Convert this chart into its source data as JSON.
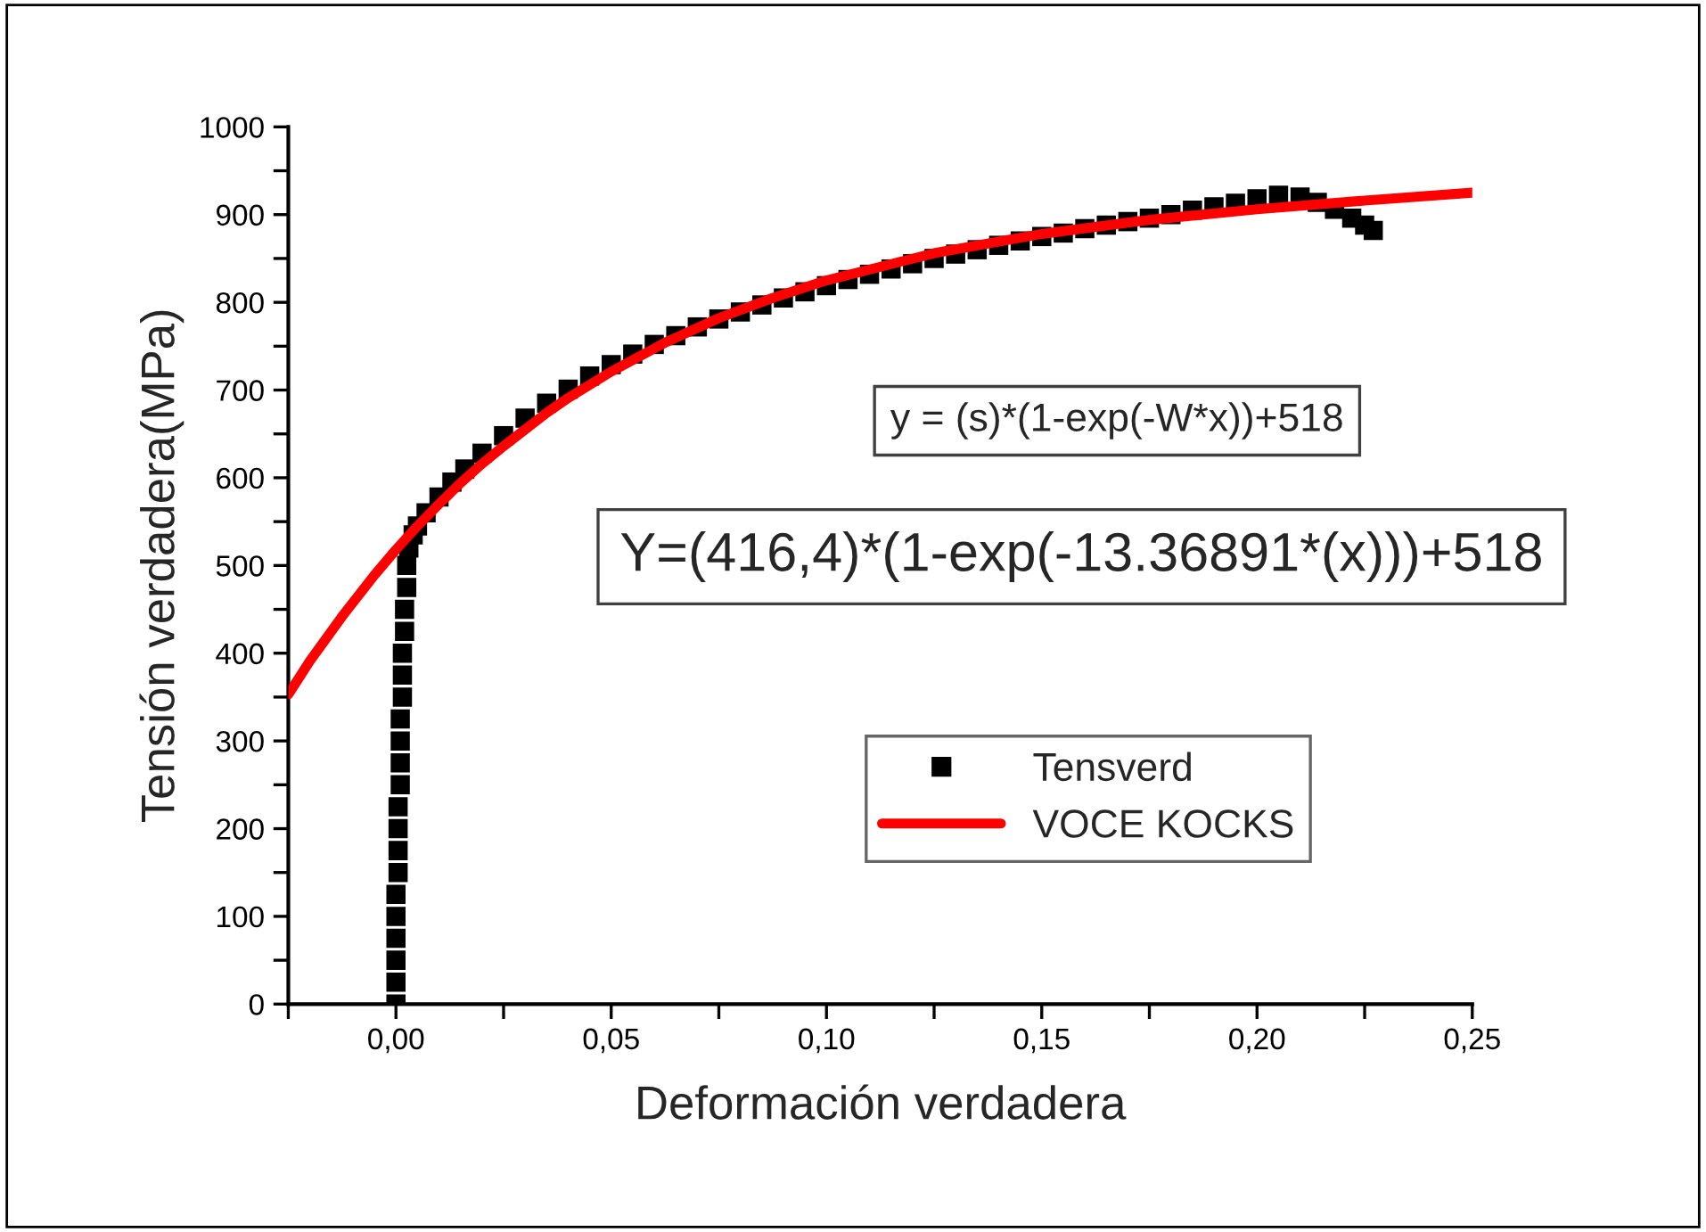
{
  "chart_data": {
    "type": "scatter",
    "xlabel": "Deformación verdadera",
    "ylabel": "Tensión verdadera(MPa)",
    "annotations": [
      "y = (s)*(1-exp(-W*x))+518",
      "Y=(416,4)*(1-exp(-13.36891*(x)))+518"
    ],
    "series": [
      {
        "name": "Tensverd",
        "marker": "square",
        "color": "#000000",
        "x": [
          0,
          0,
          0,
          0,
          0,
          0,
          0.0005,
          0.0005,
          0.0005,
          0.0005,
          0.001,
          0.001,
          0.001,
          0.001,
          0.0015,
          0.0015,
          0.0015,
          0.002,
          0.002,
          0.0025,
          0.0025,
          0.003,
          0.004,
          0.005,
          0.007,
          0.01,
          0.013,
          0.016,
          0.02,
          0.025,
          0.03,
          0.035,
          0.04,
          0.045,
          0.05,
          0.055,
          0.06,
          0.065,
          0.07,
          0.075,
          0.08,
          0.085,
          0.09,
          0.095,
          0.1,
          0.105,
          0.11,
          0.115,
          0.12,
          0.125,
          0.13,
          0.135,
          0.14,
          0.145,
          0.15,
          0.155,
          0.16,
          0.165,
          0.17,
          0.175,
          0.18,
          0.185,
          0.19,
          0.195,
          0.2,
          0.205,
          0.21,
          0.214,
          0.218,
          0.222,
          0.225,
          0.227
        ],
        "values": [
          0,
          25,
          50,
          75,
          100,
          125,
          150,
          175,
          200,
          225,
          250,
          275,
          300,
          325,
          350,
          375,
          400,
          425,
          450,
          475,
          500,
          520,
          535,
          545,
          560,
          578,
          595,
          610,
          628,
          648,
          668,
          685,
          701,
          716,
          729,
          741,
          752,
          762,
          772,
          781,
          789,
          797,
          805,
          812,
          819,
          826,
          832,
          838,
          844,
          850,
          855,
          860,
          865,
          870,
          875,
          879,
          884,
          888,
          892,
          896,
          900,
          905,
          909,
          913,
          918,
          922,
          920,
          914,
          906,
          896,
          888,
          882
        ]
      },
      {
        "name": "VOCE KOCKS",
        "type": "line",
        "marker": "none",
        "color": "#ff0000",
        "x": [
          -0.025,
          -0.02,
          -0.0125,
          -0.005,
          0,
          0.005,
          0.01,
          0.015,
          0.02,
          0.025,
          0.035,
          0.04,
          0.05,
          0.0625,
          0.075,
          0.0875,
          0.1,
          0.125,
          0.15,
          0.175,
          0.2,
          0.225,
          0.25
        ],
        "values": [
          353,
          391,
          442,
          489,
          518,
          545,
          570,
          594,
          616,
          636,
          674,
          691,
          721,
          754,
          782,
          805,
          825,
          856,
          878,
          894,
          906,
          916,
          925
        ]
      }
    ],
    "xlim": [
      -0.025,
      0.25
    ],
    "xticks": [
      {
        "value": -0.025,
        "label": null
      },
      {
        "value": 0,
        "label": "0,00"
      },
      {
        "value": 0.025,
        "label": null
      },
      {
        "value": 0.05,
        "label": "0,05"
      },
      {
        "value": 0.075,
        "label": null
      },
      {
        "value": 0.1,
        "label": "0,10"
      },
      {
        "value": 0.125,
        "label": null
      },
      {
        "value": 0.15,
        "label": "0,15"
      },
      {
        "value": 0.175,
        "label": null
      },
      {
        "value": 0.2,
        "label": "0,20"
      },
      {
        "value": 0.225,
        "label": null
      },
      {
        "value": 0.25,
        "label": "0,25"
      }
    ],
    "ylim": [
      0,
      1000
    ],
    "yticks": [
      0,
      {
        "value": 50,
        "label": null
      },
      100,
      {
        "value": 150,
        "label": null
      },
      200,
      {
        "value": 250,
        "label": null
      },
      300,
      {
        "value": 350,
        "label": null
      },
      400,
      {
        "value": 450,
        "label": null
      },
      500,
      {
        "value": 550,
        "label": null
      },
      600,
      {
        "value": 650,
        "label": null
      },
      700,
      {
        "value": 750,
        "label": null
      },
      800,
      {
        "value": 850,
        "label": null
      },
      900,
      {
        "value": 950,
        "label": null
      },
      1000
    ],
    "grid": false,
    "legend": "bottom right"
  }
}
